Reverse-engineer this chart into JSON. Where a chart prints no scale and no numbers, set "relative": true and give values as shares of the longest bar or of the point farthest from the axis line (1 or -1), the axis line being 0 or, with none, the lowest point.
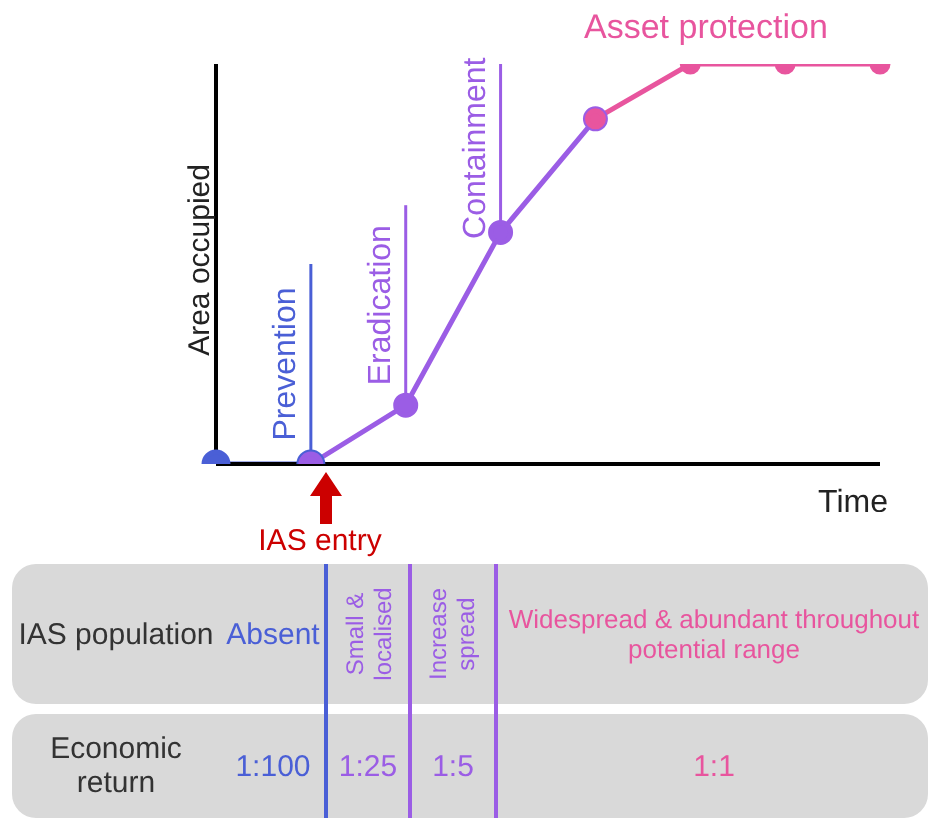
{
  "chart_data": {
    "type": "line",
    "relative": true,
    "xlabel": "Time",
    "ylabel": "Area occupied",
    "categories": [
      null,
      null,
      null,
      null,
      null,
      null,
      null,
      null
    ],
    "series": [
      {
        "color": "#4a5fd6",
        "values": [
          0,
          0,
          null,
          null,
          null,
          null,
          null,
          null
        ]
      },
      {
        "color": "#9b5de5",
        "values": [
          null,
          0,
          0.147,
          0.579,
          0.863,
          null,
          null,
          null
        ]
      },
      {
        "color": "#e8559e",
        "values": [
          null,
          null,
          null,
          null,
          0.863,
          1,
          1,
          1
        ]
      }
    ],
    "marker": "circle",
    "annotations": [
      "IAS entry",
      "Asset protection",
      "Prevention",
      "Eradication",
      "Containment",
      "IAS population",
      "Absent",
      "Small & localised",
      "Increase spread",
      "Widespread & abundant throughout potential range",
      "Economic return",
      "1:100",
      "1:25",
      "1:5",
      "1:1"
    ]
  }
}
